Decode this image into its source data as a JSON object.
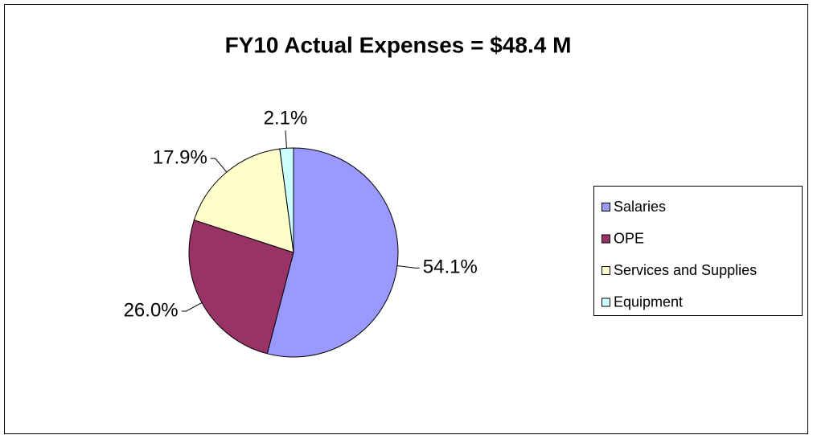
{
  "chart_data": {
    "type": "pie",
    "title": "FY10 Actual Expenses = $48.4 M",
    "categories": [
      "Salaries",
      "OPE",
      "Services and Supplies",
      "Equipment"
    ],
    "values": [
      54.1,
      26.0,
      17.9,
      2.1
    ],
    "value_labels": [
      "54.1%",
      "26.0%",
      "17.9%",
      "2.1%"
    ],
    "colors": [
      "#9999ff",
      "#993366",
      "#ffffcc",
      "#ccffff"
    ],
    "legend": "right"
  }
}
